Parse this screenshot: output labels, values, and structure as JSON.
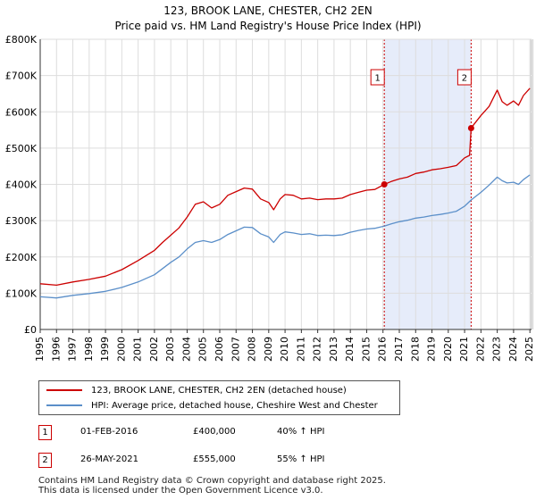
{
  "chart_data": {
    "type": "line",
    "title": "123, BROOK LANE, CHESTER, CH2 2EN",
    "subtitle": "Price paid vs. HM Land Registry's House Price Index (HPI)",
    "xlim": [
      1995,
      2025.1
    ],
    "ylim": [
      0,
      800000
    ],
    "y_ticks": [
      {
        "value": 0,
        "label": "£0"
      },
      {
        "value": 100000,
        "label": "£100K"
      },
      {
        "value": 200000,
        "label": "£200K"
      },
      {
        "value": 300000,
        "label": "£300K"
      },
      {
        "value": 400000,
        "label": "£400K"
      },
      {
        "value": 500000,
        "label": "£500K"
      },
      {
        "value": 600000,
        "label": "£600K"
      },
      {
        "value": 700000,
        "label": "£700K"
      },
      {
        "value": 800000,
        "label": "£800K"
      }
    ],
    "x_ticks": [
      "1995",
      "1996",
      "1997",
      "1998",
      "1999",
      "2000",
      "2001",
      "2002",
      "2003",
      "2004",
      "2005",
      "2006",
      "2007",
      "2008",
      "2009",
      "2010",
      "2011",
      "2012",
      "2013",
      "2014",
      "2015",
      "2016",
      "2017",
      "2018",
      "2019",
      "2020",
      "2021",
      "2022",
      "2023",
      "2024",
      "2025"
    ],
    "grid": true,
    "series": [
      {
        "name": "123, BROOK LANE, CHESTER, CH2 2EN (detached house)",
        "color": "#cc0000",
        "x": [
          1995,
          1996,
          1997,
          1998,
          1999,
          2000,
          2001,
          2002,
          2002.5,
          2003,
          2003.5,
          2004,
          2004.5,
          2005,
          2005.5,
          2006,
          2006.5,
          2007,
          2007.5,
          2008,
          2008.5,
          2009,
          2009.3,
          2009.7,
          2010,
          2010.5,
          2011,
          2011.5,
          2012,
          2012.5,
          2013,
          2013.5,
          2014,
          2014.5,
          2015,
          2015.5,
          2016.08,
          2016.5,
          2017,
          2017.5,
          2018,
          2018.5,
          2019,
          2019.5,
          2020,
          2020.5,
          2021,
          2021.3,
          2021.4,
          2021.6,
          2022,
          2022.5,
          2023,
          2023.3,
          2023.6,
          2024,
          2024.3,
          2024.6,
          2025
        ],
        "y": [
          126000,
          122000,
          131000,
          138000,
          147000,
          165000,
          190000,
          218000,
          240000,
          260000,
          280000,
          310000,
          345000,
          352000,
          335000,
          345000,
          370000,
          380000,
          390000,
          387000,
          360000,
          350000,
          330000,
          360000,
          372000,
          370000,
          360000,
          362000,
          358000,
          360000,
          360000,
          362000,
          372000,
          378000,
          384000,
          386000,
          400000,
          408000,
          415000,
          420000,
          430000,
          434000,
          440000,
          443000,
          447000,
          452000,
          473000,
          480000,
          555000,
          567000,
          590000,
          615000,
          660000,
          628000,
          618000,
          630000,
          618000,
          645000,
          665000
        ]
      },
      {
        "name": "HPI: Average price, detached house, Cheshire West and Chester",
        "color": "#5b8fc9",
        "x": [
          1995,
          1996,
          1997,
          1998,
          1999,
          2000,
          2001,
          2002,
          2002.5,
          2003,
          2003.5,
          2004,
          2004.5,
          2005,
          2005.5,
          2006,
          2006.5,
          2007,
          2007.5,
          2008,
          2008.5,
          2009,
          2009.3,
          2009.7,
          2010,
          2010.5,
          2011,
          2011.5,
          2012,
          2012.5,
          2013,
          2013.5,
          2014,
          2014.5,
          2015,
          2015.5,
          2016.08,
          2016.5,
          2017,
          2017.5,
          2018,
          2018.5,
          2019,
          2019.5,
          2020,
          2020.5,
          2021,
          2021.4,
          2021.6,
          2022,
          2022.5,
          2023,
          2023.3,
          2023.6,
          2024,
          2024.3,
          2024.6,
          2025
        ],
        "y": [
          90000,
          87000,
          94000,
          99000,
          105000,
          116000,
          131000,
          151000,
          168000,
          185000,
          200000,
          222000,
          240000,
          245000,
          240000,
          248000,
          262000,
          272000,
          282000,
          281000,
          264000,
          255000,
          240000,
          262000,
          269000,
          266000,
          262000,
          264000,
          259000,
          260000,
          259000,
          261000,
          268000,
          273000,
          277000,
          279000,
          285000,
          291000,
          297000,
          301000,
          307000,
          310000,
          314000,
          317000,
          321000,
          326000,
          340000,
          357000,
          364000,
          378000,
          398000,
          420000,
          410000,
          404000,
          406000,
          400000,
          413000,
          426000
        ]
      }
    ],
    "transactions": [
      {
        "label": "1",
        "date": "01-FEB-2016",
        "x": 2016.08,
        "price": "£400,000",
        "value": 400000,
        "hpi": "40% ↑ HPI"
      },
      {
        "label": "2",
        "date": "26-MAY-2021",
        "x": 2021.4,
        "price": "£555,000",
        "value": 555000,
        "hpi": "55% ↑ HPI"
      }
    ],
    "shaded_range": [
      2016.08,
      2021.4
    ],
    "legend_position": "below"
  },
  "colors": {
    "property": "#cc0000",
    "hpi": "#5b8fc9",
    "shade": "#dde6f8",
    "grid": "#dddddd"
  },
  "footer": {
    "line1": "Contains HM Land Registry data © Crown copyright and database right 2025.",
    "line2": "This data is licensed under the Open Government Licence v3.0."
  }
}
